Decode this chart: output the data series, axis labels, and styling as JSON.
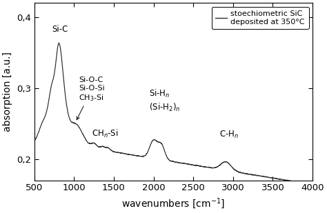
{
  "xlim": [
    500,
    4000
  ],
  "ylim": [
    0.17,
    0.42
  ],
  "yticks": [
    0.2,
    0.3,
    0.4
  ],
  "ytick_labels": [
    "0,2",
    "0,3",
    "0,4"
  ],
  "xticks": [
    500,
    1000,
    1500,
    2000,
    2500,
    3000,
    3500,
    4000
  ],
  "xlabel": "wavenumbers [cm-1]",
  "ylabel": "absorption [a.u.]",
  "line_color": "#2a2a2a",
  "background_color": "#ffffff"
}
